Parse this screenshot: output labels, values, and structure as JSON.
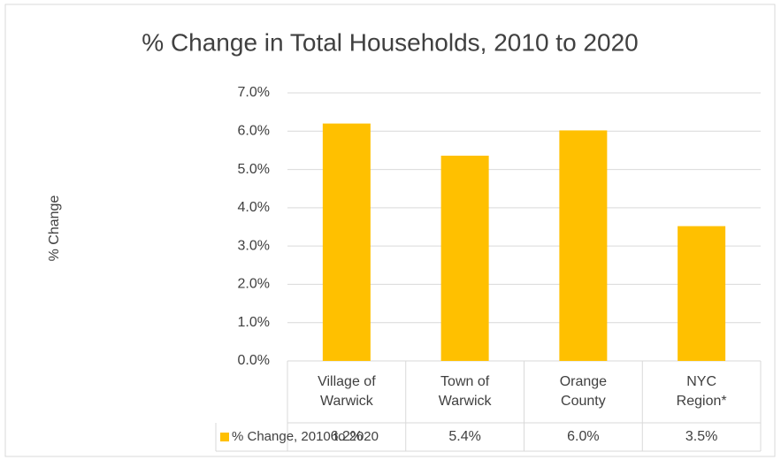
{
  "chart_data": {
    "type": "bar",
    "title": "% Change in Total Households, 2010 to 2020",
    "y_label": "% Change",
    "categories": [
      "Village of Warwick",
      "Town of Warwick",
      "Orange County",
      "NYC Region*"
    ],
    "series": [
      {
        "name": "% Change, 2010 to 2020",
        "color": "#ffc000",
        "values": [
          6.2,
          5.36,
          6.02,
          3.52
        ],
        "value_labels": [
          "6.2%",
          "5.4%",
          "6.0%",
          "3.5%"
        ]
      }
    ],
    "ylim": [
      0,
      7
    ],
    "yticks": [
      {
        "value": 0,
        "label": "0.0%"
      },
      {
        "value": 1,
        "label": "1.0%"
      },
      {
        "value": 2,
        "label": "2.0%"
      },
      {
        "value": 3,
        "label": "3.0%"
      },
      {
        "value": 4,
        "label": "4.0%"
      },
      {
        "value": 5,
        "label": "5.0%"
      },
      {
        "value": 6,
        "label": "6.0%"
      },
      {
        "value": 7,
        "label": "7.0%"
      }
    ],
    "grid": true
  }
}
